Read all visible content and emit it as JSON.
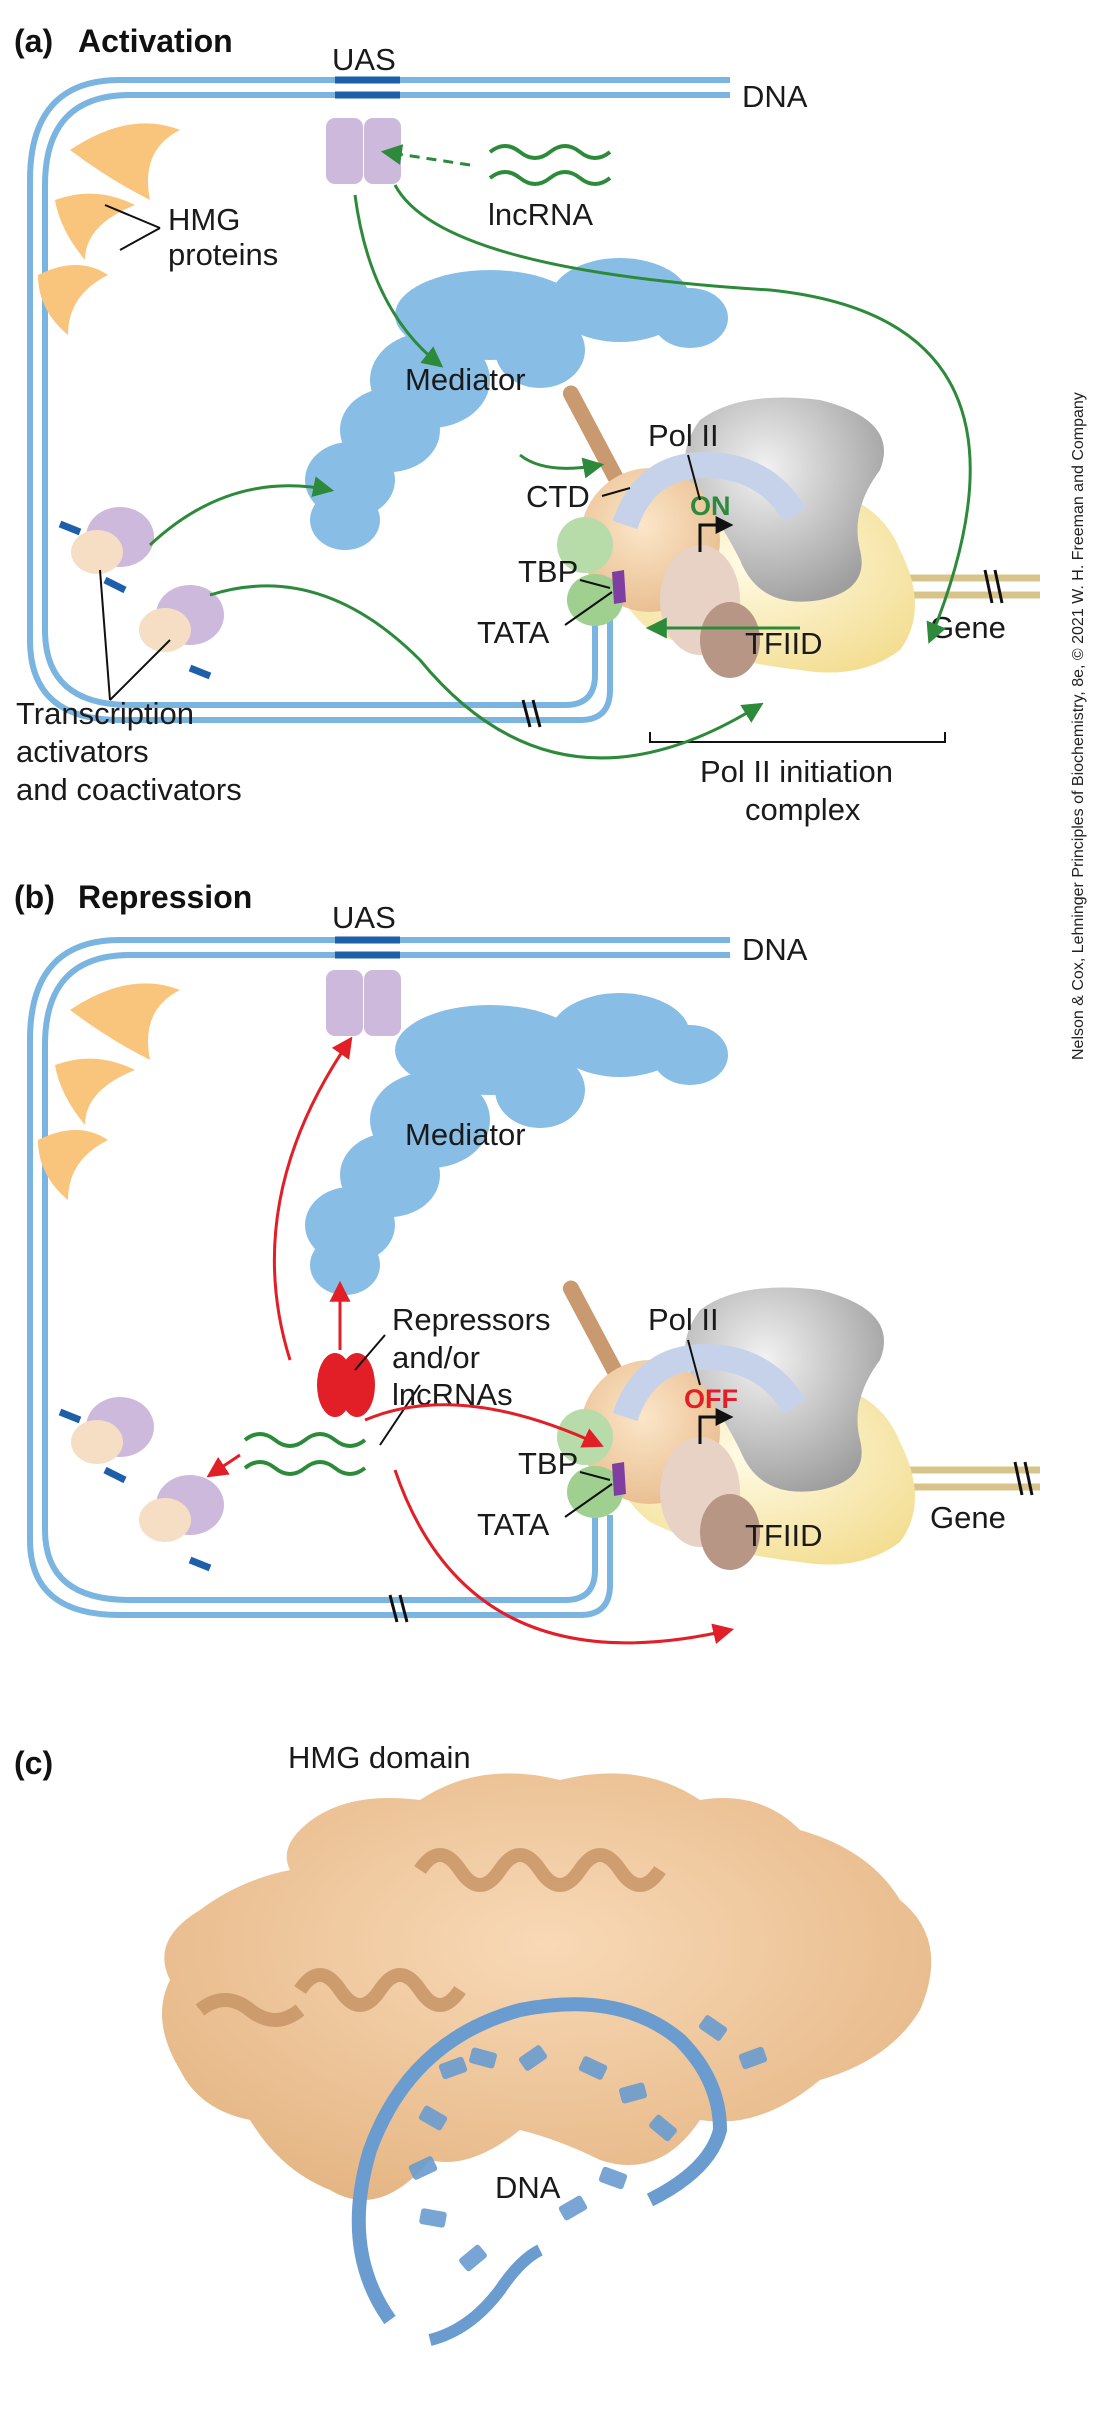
{
  "panels": {
    "a": {
      "letter": "(a)",
      "title": "Activation"
    },
    "b": {
      "letter": "(b)",
      "title": "Repression"
    },
    "c": {
      "letter": "(c)",
      "title": "HMG domain"
    }
  },
  "labels": {
    "uas": "UAS",
    "dna": "DNA",
    "lncrna": "lncRNA",
    "hmg_line1": "HMG",
    "hmg_line2": "proteins",
    "mediator": "Mediator",
    "pol2": "Pol II",
    "ctd": "CTD",
    "on": "ON",
    "off": "OFF",
    "tbp": "TBP",
    "tata": "TATA",
    "tfiid": "TFIID",
    "gene": "Gene",
    "activators_line1": "Transcription",
    "activators_line2": "activators",
    "activators_line3": "and coactivators",
    "initiation_line1": "Pol II initiation",
    "initiation_line2": "complex",
    "repressors_line1": "Repressors",
    "repressors_line2": "and/or",
    "repressors_line3": "lncRNAs",
    "dna_c": "DNA"
  },
  "credit": "Nelson & Cox, Lehninger Principles of Biochemistry, 8e, © 2021 W. H. Freeman and Company",
  "colors": {
    "dna": "#7ab4e0",
    "dna_dark": "#1d5fa8",
    "mediator": "#88bde6",
    "hmg": "#f9c57c",
    "uas_protein": "#cdb9dc",
    "activate_arrow": "#2c8a3a",
    "repress_arrow": "#e21e26",
    "tfiid": "#fbe7a7",
    "gene_band": "#d8c48a",
    "hmg_surface": "#f3caa0"
  }
}
